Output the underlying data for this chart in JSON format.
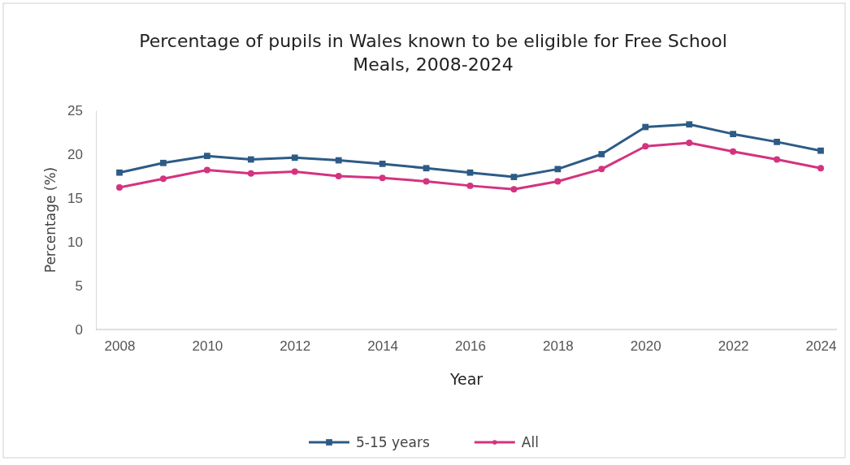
{
  "chart_data": {
    "type": "line",
    "title": "Percentage of pupils in Wales known to be eligible for Free School Meals, 2008-2024",
    "xlabel": "Year",
    "ylabel": "Percentage (%)",
    "categories": [
      "2008",
      null,
      "2010",
      null,
      "2012",
      null,
      "2014",
      null,
      "2016",
      null,
      "2018",
      null,
      "2020",
      null,
      "2022",
      null,
      "2024"
    ],
    "ylim": [
      0,
      25
    ],
    "yticks": [
      0,
      5,
      10,
      15,
      20,
      25
    ],
    "grid": false,
    "legend": "bottom",
    "series": [
      {
        "name": "5-15 years",
        "color": "#2d5b86",
        "marker": "square",
        "values": [
          17.9,
          19.0,
          19.8,
          19.4,
          19.6,
          19.3,
          18.9,
          18.4,
          17.9,
          17.4,
          18.3,
          20.0,
          23.1,
          23.4,
          22.3,
          21.4,
          20.4
        ]
      },
      {
        "name": "All",
        "color": "#d4337f",
        "marker": "circle",
        "values": [
          16.2,
          17.2,
          18.2,
          17.8,
          18.0,
          17.5,
          17.3,
          16.9,
          16.4,
          16.0,
          16.9,
          18.3,
          20.9,
          21.3,
          20.3,
          19.4,
          18.4
        ]
      }
    ]
  }
}
